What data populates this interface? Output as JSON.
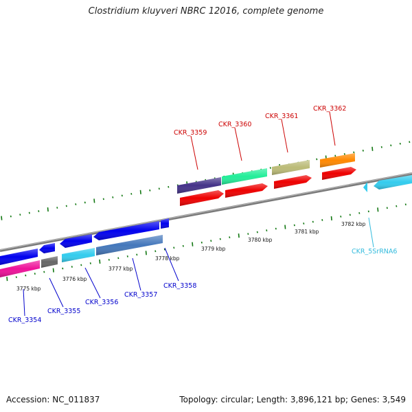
{
  "title": "Clostridium kluyveri NBRC 12016, complete genome",
  "footer": {
    "accession": "Accession: NC_011837",
    "summary": "Topology: circular; Length: 3,896,121 bp; Genes: 3,549"
  },
  "scale_labels": [
    "3775 kbp",
    "3776 kbp",
    "3777 kbp",
    "3778 kbp",
    "3779 kbp",
    "3780 kbp",
    "3781 kbp",
    "3782 kbp"
  ],
  "colors": {
    "forward_label": "#cc0000",
    "reverse_label": "#0000cc",
    "rna_label": "#33bbdd",
    "backbone": "#888888",
    "tick": "#117711"
  },
  "genes": [
    {
      "name": "CKR_3354",
      "strand": "reverse",
      "color": "#0000ee",
      "cog_color": "#ee1199"
    },
    {
      "name": "CKR_3355",
      "strand": "reverse",
      "color": "#0000ee",
      "cog_color": "#666666"
    },
    {
      "name": "CKR_3356",
      "strand": "reverse",
      "color": "#0000ee",
      "cog_color": "#33ccee"
    },
    {
      "name": "CKR_3357",
      "strand": "reverse",
      "color": "#0000ee",
      "cog_color": "#4477bb"
    },
    {
      "name": "CKR_3358",
      "strand": "reverse",
      "color": "#0000ee",
      "cog_color": ""
    },
    {
      "name": "CKR_3359",
      "strand": "forward",
      "color": "#ee0000",
      "cog_color": "#443388"
    },
    {
      "name": "CKR_3360",
      "strand": "forward",
      "color": "#ee0000",
      "cog_color": "#22ee99"
    },
    {
      "name": "CKR_3361",
      "strand": "forward",
      "color": "#ee0000",
      "cog_color": "#bbbb77"
    },
    {
      "name": "CKR_3362",
      "strand": "forward",
      "color": "#ee0000",
      "cog_color": "#ff8800"
    },
    {
      "name": "CKR_5SrRNA6",
      "strand": "reverse",
      "color": "#33ccee",
      "cog_color": ""
    }
  ]
}
